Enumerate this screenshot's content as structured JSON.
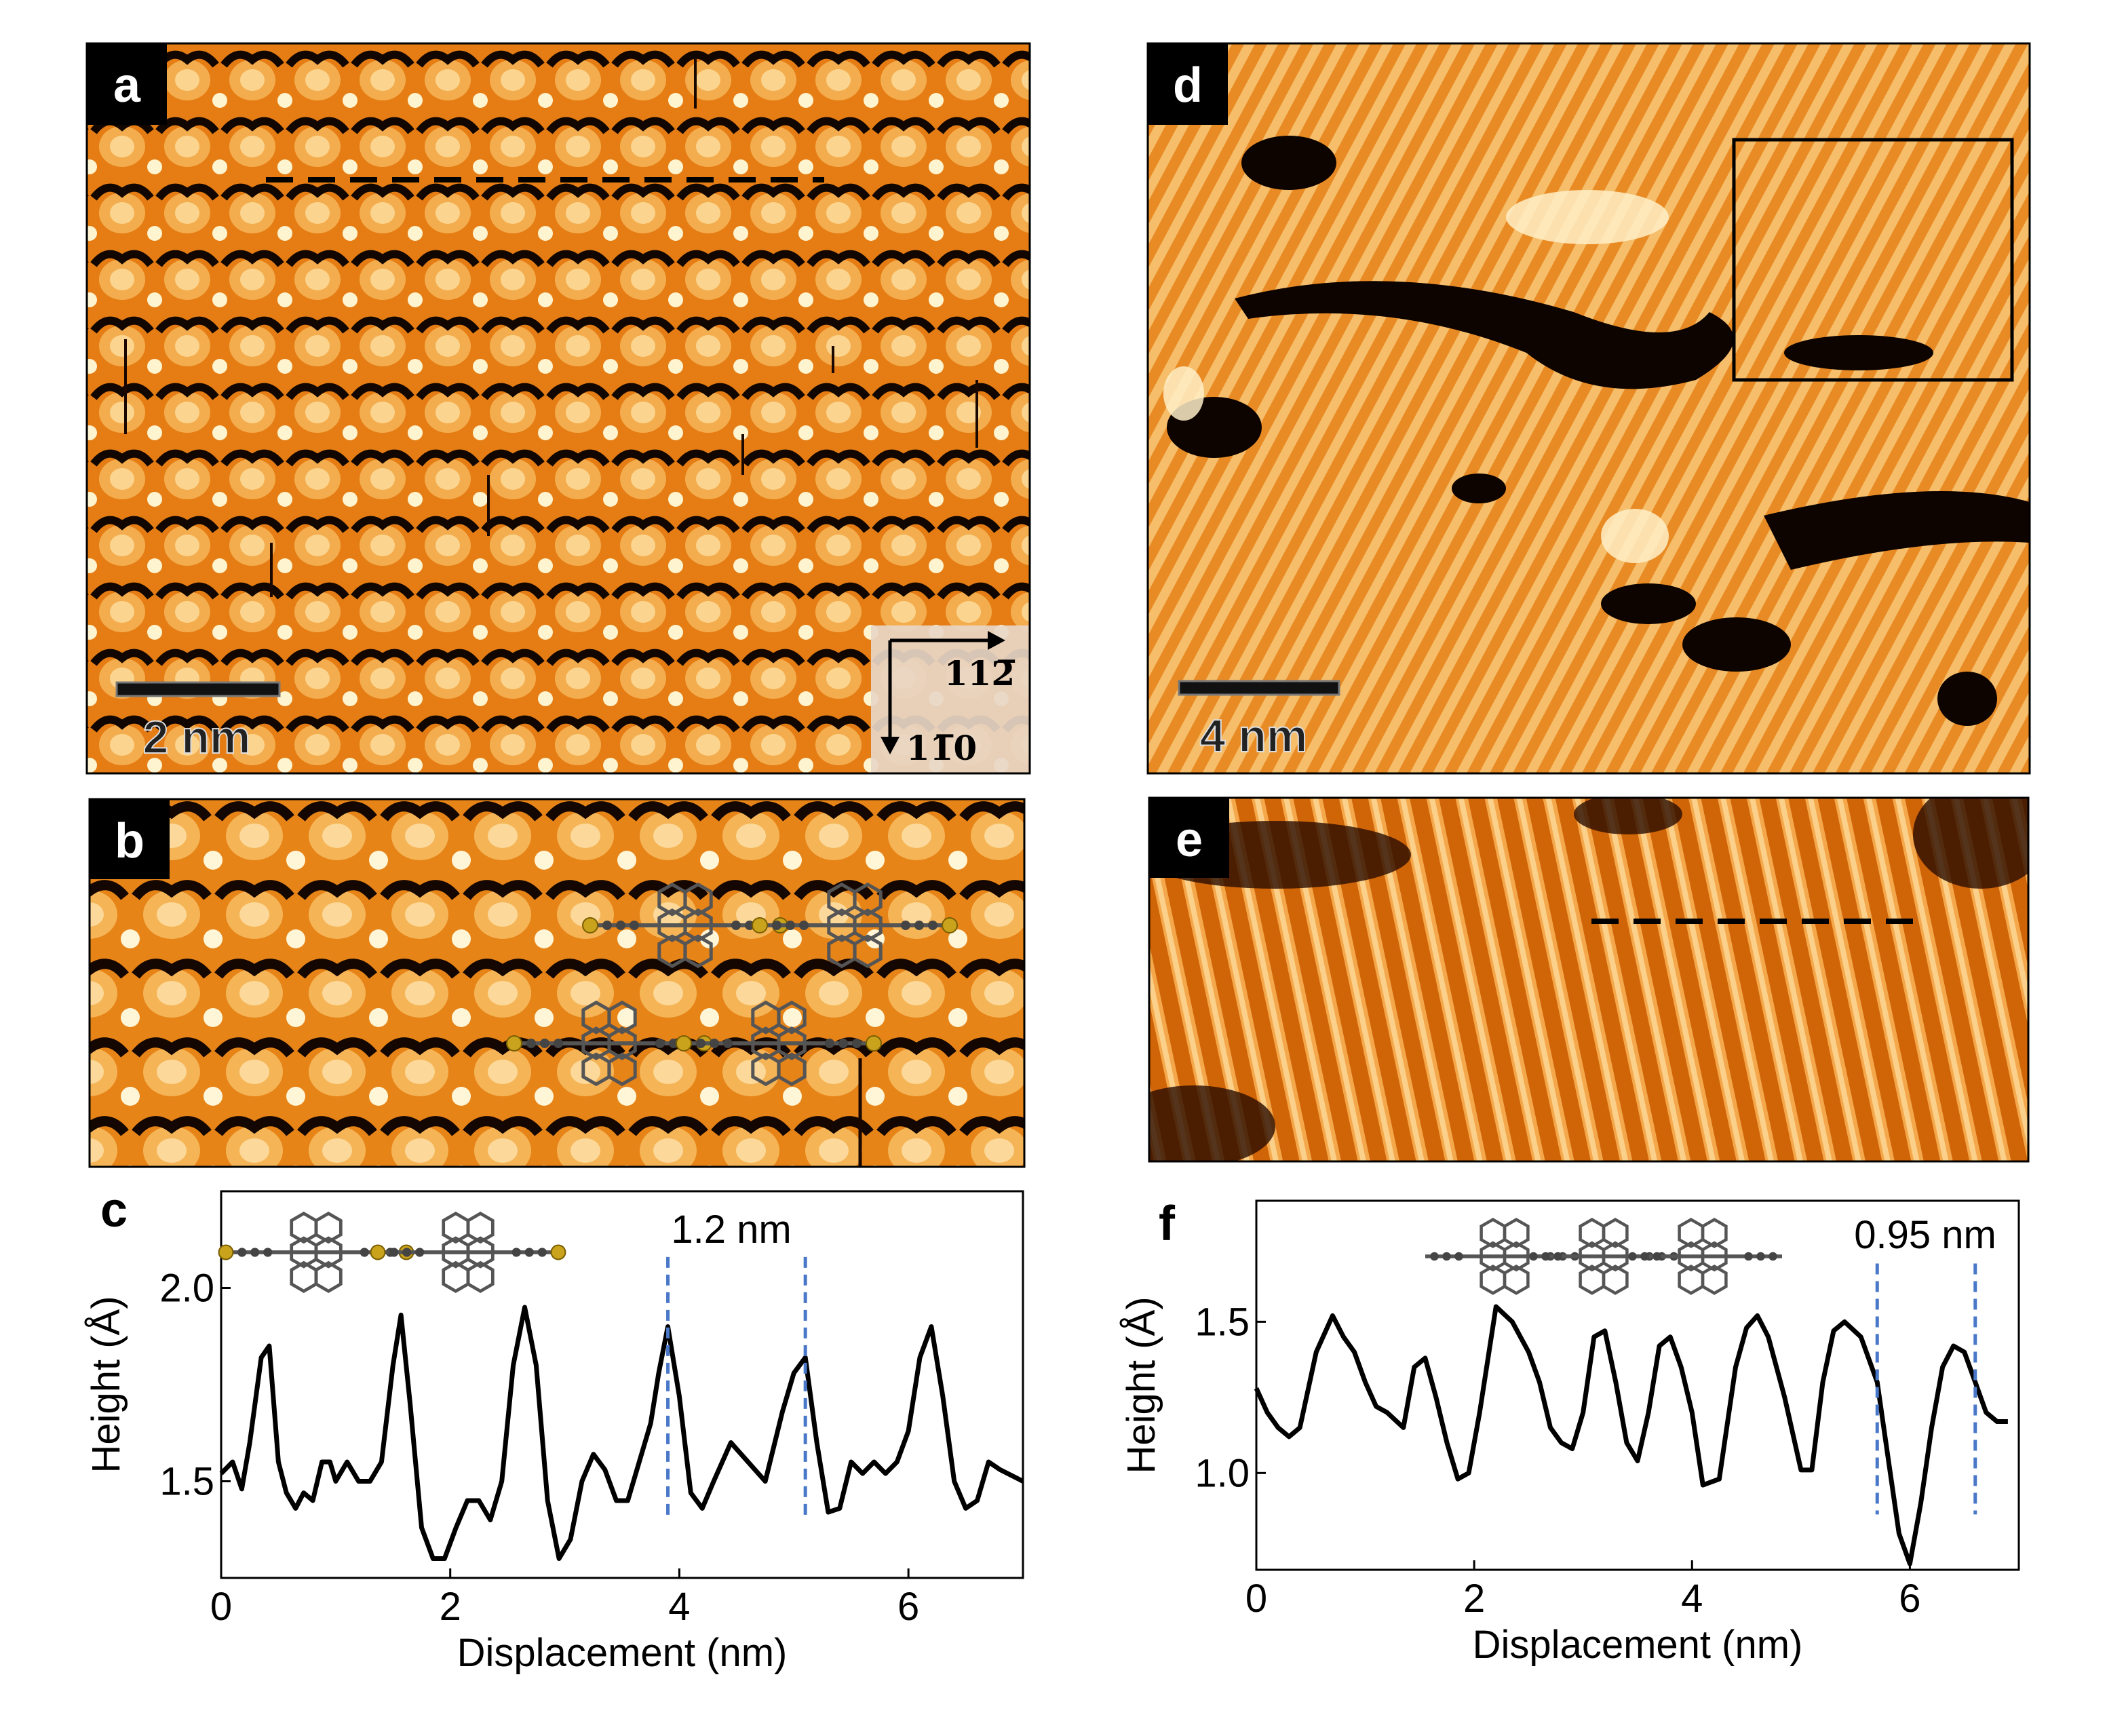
{
  "panels": {
    "a": {
      "label": "a",
      "scalebar": "2 nm",
      "dir_x": "112̅",
      "dir_y": "11̅0"
    },
    "b": {
      "label": "b"
    },
    "c": {
      "label": "c"
    },
    "d": {
      "label": "d",
      "scalebar": "4 nm"
    },
    "e": {
      "label": "e"
    },
    "f": {
      "label": "f"
    }
  },
  "colors": {
    "stm_dark": "#000000",
    "stm_mid": "#e3780f",
    "stm_bright": "#fff6d8",
    "profile_line": "#000000",
    "marker": "#4a78c8"
  },
  "chart_data": [
    {
      "panel": "c",
      "type": "line",
      "xlabel": "Displacement (nm)",
      "ylabel": "Height (Å)",
      "xlim": [
        0,
        7
      ],
      "ylim": [
        1.25,
        2.25
      ],
      "xticks": [
        0,
        2,
        4,
        6
      ],
      "yticks": [
        1.5,
        2.0
      ],
      "xtick_labels": [
        "0",
        "2",
        "4",
        "6"
      ],
      "ytick_labels": [
        "1.5",
        "2.0"
      ],
      "annotation": "1.2 nm",
      "markers": [
        3.9,
        5.1
      ],
      "x": [
        0.0,
        0.1,
        0.18,
        0.25,
        0.35,
        0.42,
        0.5,
        0.57,
        0.65,
        0.72,
        0.8,
        0.88,
        0.95,
        1.0,
        1.1,
        1.2,
        1.3,
        1.4,
        1.5,
        1.57,
        1.65,
        1.75,
        1.85,
        1.95,
        2.05,
        2.15,
        2.25,
        2.35,
        2.45,
        2.55,
        2.65,
        2.75,
        2.85,
        2.95,
        3.05,
        3.15,
        3.25,
        3.35,
        3.45,
        3.55,
        3.65,
        3.75,
        3.82,
        3.9,
        4.0,
        4.1,
        4.2,
        4.3,
        4.45,
        4.6,
        4.75,
        4.9,
        5.0,
        5.1,
        5.2,
        5.3,
        5.4,
        5.5,
        5.6,
        5.7,
        5.8,
        5.9,
        6.0,
        6.1,
        6.2,
        6.3,
        6.4,
        6.5,
        6.6,
        6.7,
        6.8,
        7.0
      ],
      "y": [
        1.52,
        1.55,
        1.48,
        1.6,
        1.82,
        1.85,
        1.55,
        1.47,
        1.43,
        1.47,
        1.45,
        1.55,
        1.55,
        1.5,
        1.55,
        1.5,
        1.5,
        1.55,
        1.8,
        1.93,
        1.7,
        1.38,
        1.3,
        1.3,
        1.38,
        1.45,
        1.45,
        1.4,
        1.5,
        1.8,
        1.95,
        1.8,
        1.45,
        1.3,
        1.35,
        1.5,
        1.57,
        1.53,
        1.45,
        1.45,
        1.55,
        1.65,
        1.78,
        1.9,
        1.72,
        1.47,
        1.43,
        1.5,
        1.6,
        1.55,
        1.5,
        1.68,
        1.78,
        1.82,
        1.6,
        1.42,
        1.43,
        1.55,
        1.52,
        1.55,
        1.52,
        1.55,
        1.63,
        1.82,
        1.9,
        1.72,
        1.5,
        1.43,
        1.45,
        1.55,
        1.53,
        1.5
      ]
    },
    {
      "panel": "f",
      "type": "line",
      "xlabel": "Displacement (nm)",
      "ylabel": "Height (Å)",
      "xlim": [
        0,
        7
      ],
      "ylim": [
        0.68,
        1.9
      ],
      "xticks": [
        0,
        2,
        4,
        6
      ],
      "yticks": [
        1.0,
        1.5
      ],
      "xtick_labels": [
        "0",
        "2",
        "4",
        "6"
      ],
      "ytick_labels": [
        "1.0",
        "1.5"
      ],
      "annotation": "0.95 nm",
      "markers": [
        5.7,
        6.6
      ],
      "x": [
        0.0,
        0.1,
        0.2,
        0.3,
        0.4,
        0.55,
        0.7,
        0.8,
        0.9,
        1.0,
        1.1,
        1.2,
        1.35,
        1.45,
        1.55,
        1.65,
        1.75,
        1.85,
        1.95,
        2.05,
        2.2,
        2.35,
        2.5,
        2.6,
        2.7,
        2.8,
        2.9,
        3.0,
        3.1,
        3.2,
        3.3,
        3.4,
        3.5,
        3.6,
        3.7,
        3.8,
        3.9,
        4.0,
        4.1,
        4.25,
        4.4,
        4.5,
        4.6,
        4.7,
        4.85,
        5.0,
        5.1,
        5.2,
        5.3,
        5.4,
        5.55,
        5.7,
        5.8,
        5.9,
        6.0,
        6.1,
        6.2,
        6.3,
        6.4,
        6.5,
        6.6,
        6.7,
        6.8,
        6.9
      ],
      "y": [
        1.28,
        1.2,
        1.15,
        1.12,
        1.15,
        1.4,
        1.52,
        1.45,
        1.4,
        1.3,
        1.22,
        1.2,
        1.15,
        1.35,
        1.38,
        1.25,
        1.1,
        0.98,
        1.0,
        1.2,
        1.55,
        1.5,
        1.4,
        1.3,
        1.15,
        1.1,
        1.08,
        1.2,
        1.45,
        1.47,
        1.3,
        1.1,
        1.04,
        1.2,
        1.42,
        1.45,
        1.35,
        1.2,
        0.96,
        0.98,
        1.35,
        1.48,
        1.52,
        1.45,
        1.25,
        1.01,
        1.01,
        1.3,
        1.47,
        1.5,
        1.45,
        1.3,
        1.05,
        0.8,
        0.7,
        0.9,
        1.15,
        1.35,
        1.42,
        1.4,
        1.3,
        1.2,
        1.17,
        1.17
      ]
    }
  ]
}
